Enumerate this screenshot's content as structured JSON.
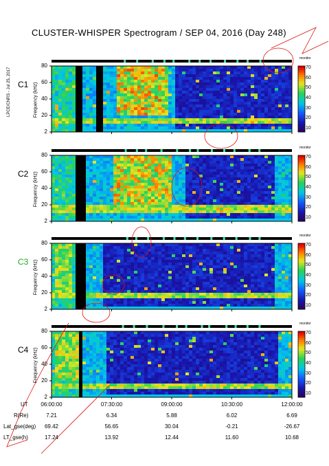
{
  "title": "CLUSTER-WHISPER Spectrogram / SEP 04, 2016 (Day 248)",
  "side_note": "LPCE/CNRS - Jul 25, 2017",
  "colorbar_ticks": [
    "70",
    "60",
    "50",
    "40",
    "30",
    "20",
    "10"
  ],
  "colorbar_unit": "dB above 10^-8 V_Hz^-1/2",
  "monitor_label": "monitor",
  "freq_axis_label": "Frequency (kHz)",
  "freq_ticks": [
    "80",
    "60",
    "40",
    "20",
    "2"
  ],
  "panels": [
    {
      "name": "C1",
      "color": "#000000"
    },
    {
      "name": "C2",
      "color": "#000000"
    },
    {
      "name": "C3",
      "color": "#22aa22"
    },
    {
      "name": "C4",
      "color": "#000000"
    }
  ],
  "footer": {
    "rows": [
      {
        "label": "UT",
        "values": [
          "06:00:00",
          "07:30:00",
          "09:00:00",
          "10:30:00",
          "12:00:00"
        ]
      },
      {
        "label": "R(Re)",
        "values": [
          "7.21",
          "6.34",
          "5.88",
          "6.02",
          "6.69"
        ]
      },
      {
        "label": "Lat_gse(deg)",
        "values": [
          "69.42",
          "56.65",
          "30.04",
          "-0.21",
          "-26.67"
        ]
      },
      {
        "label": "LT_gse(h)",
        "values": [
          "17.24",
          "13.92",
          "12.44",
          "11.60",
          "10.68"
        ]
      }
    ]
  },
  "chart_data": [
    {
      "type": "heatmap",
      "title": "C1",
      "xlabel": "UT",
      "ylabel": "Frequency (kHz)",
      "xlim": [
        "06:00:00",
        "12:00:00"
      ],
      "ylim": [
        2,
        80
      ],
      "colorbar": "dB above 10^-8 V_Hz^-1/2",
      "clim": [
        10,
        70
      ]
    },
    {
      "type": "heatmap",
      "title": "C2",
      "xlabel": "UT",
      "ylabel": "Frequency (kHz)",
      "xlim": [
        "06:00:00",
        "12:00:00"
      ],
      "ylim": [
        2,
        80
      ],
      "colorbar": "dB above 10^-8 V_Hz^-1/2",
      "clim": [
        10,
        70
      ]
    },
    {
      "type": "heatmap",
      "title": "C3",
      "xlabel": "UT",
      "ylabel": "Frequency (kHz)",
      "xlim": [
        "06:00:00",
        "12:00:00"
      ],
      "ylim": [
        2,
        80
      ],
      "colorbar": "dB above 10^-8 V_Hz^-1/2",
      "clim": [
        10,
        70
      ]
    },
    {
      "type": "heatmap",
      "title": "C4",
      "xlabel": "UT",
      "ylabel": "Frequency (kHz)",
      "xlim": [
        "06:00:00",
        "12:00:00"
      ],
      "ylim": [
        2,
        80
      ],
      "colorbar": "dB above 10^-8 V_Hz^-1/2",
      "clim": [
        10,
        70
      ]
    }
  ]
}
